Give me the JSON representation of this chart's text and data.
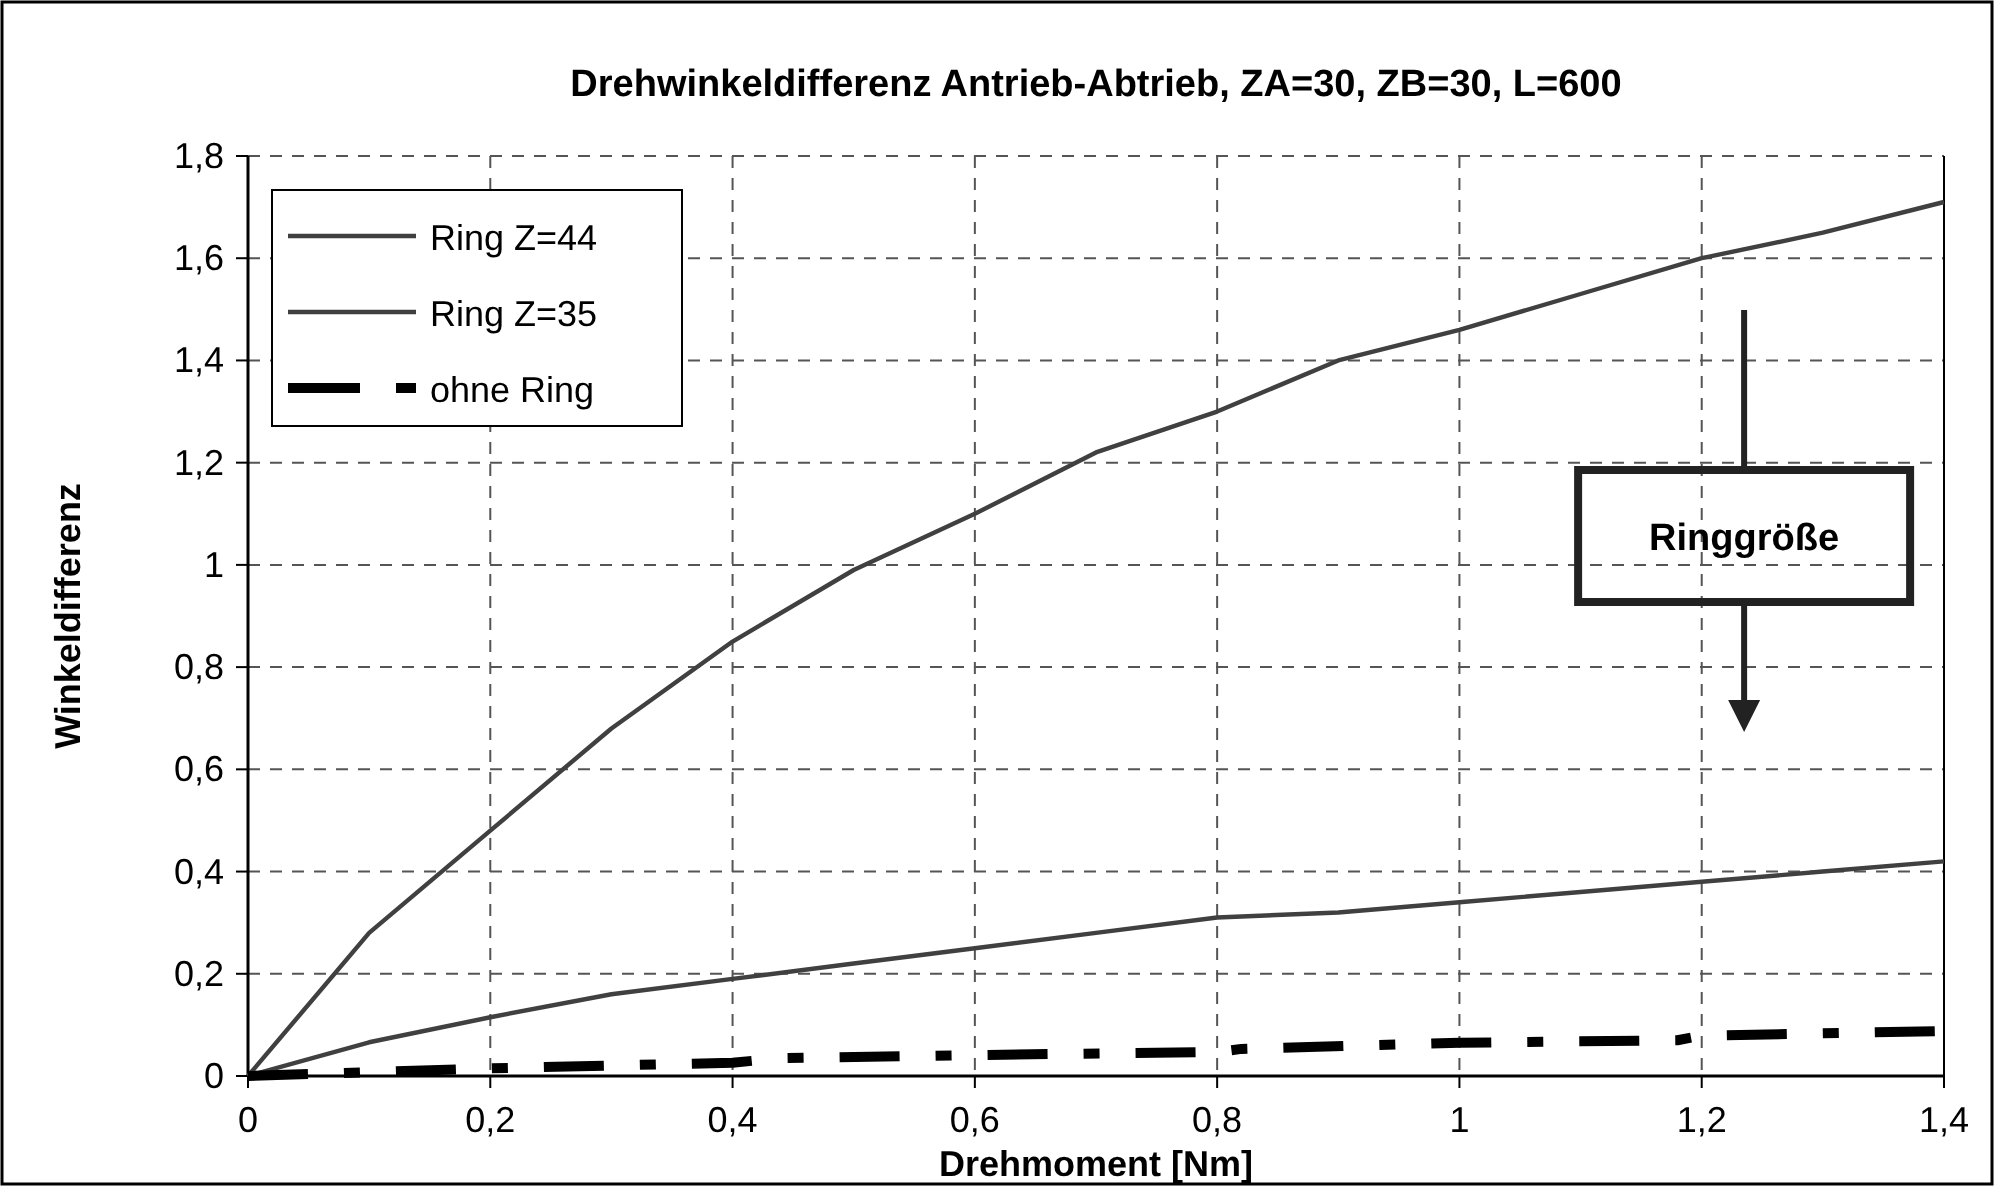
{
  "chart_data": {
    "type": "line",
    "title": "Drehwinkeldifferenz Antrieb-Abtrieb, ZA=30, ZB=30, L=600",
    "xlabel": "Drehmoment [Nm]",
    "ylabel": "Winkeldifferenz",
    "xlim": [
      0,
      1.4
    ],
    "ylim": [
      0,
      1.8
    ],
    "xticks": [
      0,
      {
        "value": 0.2,
        "label": "0,2"
      },
      {
        "value": 0.4,
        "label": "0,4"
      },
      {
        "value": 0.6,
        "label": "0,6"
      },
      {
        "value": 0.8,
        "label": "0,8"
      },
      1,
      {
        "value": 1.2,
        "label": "1,2"
      },
      {
        "value": 1.4,
        "label": "1,4"
      }
    ],
    "yticks": [
      0,
      {
        "value": 0.2,
        "label": "0,2"
      },
      {
        "value": 0.4,
        "label": "0,4"
      },
      {
        "value": 0.6,
        "label": "0,6"
      },
      {
        "value": 0.8,
        "label": "0,8"
      },
      1,
      {
        "value": 1.2,
        "label": "1,2"
      },
      {
        "value": 1.4,
        "label": "1,4"
      },
      {
        "value": 1.6,
        "label": "1,6"
      },
      {
        "value": 1.8,
        "label": "1,8"
      }
    ],
    "grid": true,
    "legend": "top left",
    "annotations": [
      "Ringgröße"
    ],
    "series": [
      {
        "name": "Ring Z=44",
        "color": "#404040",
        "line_style": "solid",
        "x": [
          0,
          0.1,
          0.2,
          0.3,
          0.4,
          0.5,
          0.6,
          0.7,
          0.8,
          0.9,
          1,
          1.1,
          1.2,
          1.3,
          1.4
        ],
        "values": [
          0,
          0.28,
          0.48,
          0.68,
          0.85,
          0.99,
          1.1,
          1.22,
          1.3,
          1.4,
          1.46,
          1.53,
          1.6,
          1.65,
          1.71
        ]
      },
      {
        "name": "Ring Z=35",
        "color": "#404040",
        "line_style": "solid",
        "x": [
          0,
          0.1,
          0.2,
          0.3,
          0.4,
          0.5,
          0.6,
          0.7,
          0.8,
          0.9,
          1,
          1.1,
          1.2,
          1.3,
          1.4
        ],
        "values": [
          0,
          0.066,
          0.115,
          0.16,
          0.19,
          0.22,
          0.25,
          0.28,
          0.31,
          0.32,
          0.34,
          0.36,
          0.38,
          0.4,
          0.42
        ]
      },
      {
        "name": "ohne Ring",
        "color": "#000000",
        "line_style": "dashed",
        "x": [
          0,
          0.2,
          0.4,
          0.44,
          0.6,
          0.8,
          0.82,
          1,
          1.18,
          1.2,
          1.4
        ],
        "values": [
          0,
          0.015,
          0.026,
          0.035,
          0.041,
          0.047,
          0.053,
          0.065,
          0.07,
          0.079,
          0.088
        ]
      }
    ]
  }
}
